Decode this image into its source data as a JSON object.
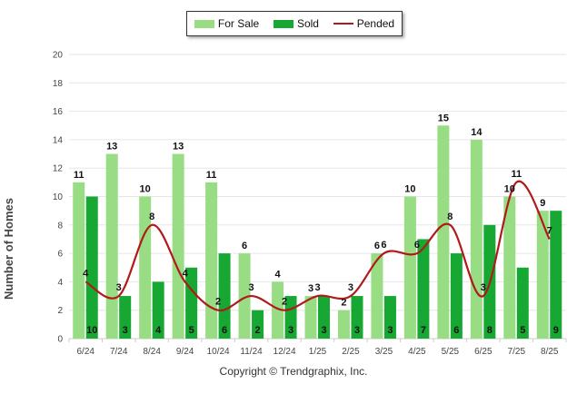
{
  "colors": {
    "for_sale": "#98dc84",
    "sold": "#16a832",
    "pended": "#b01a1a",
    "grid": "#e6e6e6",
    "axis_text": "#444444"
  },
  "legend": {
    "for_sale": "For Sale",
    "sold": "Sold",
    "pended": "Pended"
  },
  "copyright": "Copyright © Trendgraphix, Inc.",
  "chart_data": {
    "type": "bar",
    "title": "",
    "xlabel": "",
    "ylabel": "Number of Homes",
    "ylim": [
      0,
      20
    ],
    "yticks": [
      0,
      2,
      4,
      6,
      8,
      10,
      12,
      14,
      16,
      18,
      20
    ],
    "grid": true,
    "legend_position": "top-center",
    "categories": [
      "6/24",
      "7/24",
      "8/24",
      "9/24",
      "10/24",
      "11/24",
      "12/24",
      "1/25",
      "2/25",
      "3/25",
      "4/25",
      "5/25",
      "6/25",
      "7/25",
      "8/25"
    ],
    "series": [
      {
        "name": "For Sale",
        "type": "bar",
        "values": [
          11,
          13,
          10,
          13,
          11,
          6,
          4,
          3,
          2,
          6,
          10,
          15,
          14,
          10,
          9
        ]
      },
      {
        "name": "Sold",
        "type": "bar",
        "values": [
          10,
          3,
          4,
          5,
          6,
          2,
          3,
          3,
          3,
          3,
          7,
          6,
          8,
          5,
          9
        ]
      },
      {
        "name": "Pended",
        "type": "line",
        "values": [
          4,
          3,
          8,
          4,
          2,
          3,
          2,
          3,
          3,
          6,
          6,
          8,
          3,
          11,
          7
        ]
      }
    ]
  }
}
